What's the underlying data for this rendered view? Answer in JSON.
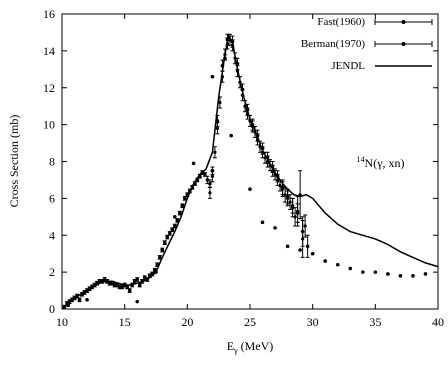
{
  "chart_data": {
    "type": "scatter",
    "title": "",
    "xlabel": "Eγ (MeV)",
    "xlabel_base": "E",
    "xlabel_sub": "γ",
    "xlabel_unit": "(MeV)",
    "ylabel": "Cross Section (mb)",
    "xlim": [
      10,
      40
    ],
    "ylim": [
      0,
      16
    ],
    "x_ticks": [
      10,
      15,
      20,
      25,
      30,
      35,
      40
    ],
    "y_ticks": [
      0,
      2,
      4,
      6,
      8,
      10,
      12,
      14,
      16
    ],
    "grid": false,
    "legend_position": "top-right",
    "annotation": {
      "sup": "14",
      "text": "N(γ, xn)",
      "x": 33.5,
      "y": 7.7
    },
    "series": [
      {
        "name": "Fast(1960)",
        "style": "points-errorbars",
        "color": "#000000",
        "points": [
          [
            21.8,
            6.3,
            0.3
          ],
          [
            22.0,
            7.2,
            0.3
          ],
          [
            22.2,
            8.5,
            0.3
          ],
          [
            22.4,
            9.8,
            0.3
          ],
          [
            22.6,
            11.2,
            0.3
          ],
          [
            22.8,
            12.6,
            0.3
          ],
          [
            23.0,
            13.8,
            0.3
          ],
          [
            23.2,
            14.4,
            0.3
          ],
          [
            23.4,
            14.6,
            0.3
          ],
          [
            23.6,
            14.3,
            0.3
          ],
          [
            23.8,
            13.6,
            0.3
          ],
          [
            24.0,
            12.9,
            0.3
          ],
          [
            24.2,
            12.3,
            0.3
          ],
          [
            24.4,
            11.6,
            0.3
          ],
          [
            24.6,
            11.0,
            0.3
          ],
          [
            24.8,
            10.6,
            0.3
          ],
          [
            25.0,
            10.2,
            0.3
          ],
          [
            25.2,
            9.9,
            0.3
          ],
          [
            25.4,
            9.6,
            0.3
          ],
          [
            25.6,
            9.2,
            0.3
          ],
          [
            25.8,
            8.8,
            0.3
          ],
          [
            26.0,
            8.5,
            0.3
          ],
          [
            26.2,
            8.2,
            0.3
          ],
          [
            26.4,
            8.0,
            0.3
          ],
          [
            26.6,
            7.8,
            0.3
          ],
          [
            26.8,
            7.5,
            0.3
          ],
          [
            27.0,
            7.3,
            0.3
          ],
          [
            27.2,
            7.0,
            0.3
          ],
          [
            27.4,
            6.7,
            0.3
          ],
          [
            27.6,
            6.5,
            0.4
          ],
          [
            27.8,
            6.2,
            0.4
          ],
          [
            28.0,
            6.0,
            0.4
          ],
          [
            28.2,
            5.8,
            0.4
          ],
          [
            28.4,
            5.5,
            0.5
          ],
          [
            28.6,
            5.0,
            0.5
          ],
          [
            28.8,
            5.3,
            0.8
          ],
          [
            29.0,
            6.2,
            1.3
          ],
          [
            29.2,
            3.8,
            1.0
          ],
          [
            29.4,
            4.5,
            0.6
          ]
        ]
      },
      {
        "name": "Berman(1970)",
        "style": "points-errorbars",
        "color": "#000000",
        "points": [
          [
            10.2,
            0.1,
            0.1
          ],
          [
            10.4,
            0.3,
            0.1
          ],
          [
            10.6,
            0.4,
            0.1
          ],
          [
            10.8,
            0.5,
            0.1
          ],
          [
            11.0,
            0.6,
            0.1
          ],
          [
            11.2,
            0.7,
            0.1
          ],
          [
            11.4,
            0.5,
            0.1
          ],
          [
            11.6,
            0.8,
            0.1
          ],
          [
            11.8,
            0.9,
            0.1
          ],
          [
            12.0,
            1.0,
            0.1
          ],
          [
            12.2,
            1.1,
            0.1
          ],
          [
            12.4,
            1.2,
            0.1
          ],
          [
            12.6,
            1.3,
            0.1
          ],
          [
            12.8,
            1.4,
            0.1
          ],
          [
            13.0,
            1.5,
            0.1
          ],
          [
            13.2,
            1.5,
            0.1
          ],
          [
            13.4,
            1.6,
            0.1
          ],
          [
            13.6,
            1.5,
            0.1
          ],
          [
            13.8,
            1.4,
            0.1
          ],
          [
            14.0,
            1.4,
            0.1
          ],
          [
            14.2,
            1.3,
            0.1
          ],
          [
            14.4,
            1.3,
            0.1
          ],
          [
            14.6,
            1.2,
            0.1
          ],
          [
            14.8,
            1.2,
            0.1
          ],
          [
            15.0,
            1.3,
            0.1
          ],
          [
            15.2,
            1.2,
            0.1
          ],
          [
            15.4,
            1.0,
            0.1
          ],
          [
            15.6,
            1.3,
            0.1
          ],
          [
            15.8,
            1.5,
            0.1
          ],
          [
            16.0,
            1.6,
            0.1
          ],
          [
            16.2,
            1.3,
            0.1
          ],
          [
            16.4,
            1.5,
            0.1
          ],
          [
            16.6,
            1.7,
            0.1
          ],
          [
            16.8,
            1.6,
            0.1
          ],
          [
            17.0,
            1.8,
            0.1
          ],
          [
            17.2,
            1.9,
            0.1
          ],
          [
            17.4,
            2.1,
            0.1
          ],
          [
            17.6,
            2.4,
            0.1
          ],
          [
            17.8,
            2.8,
            0.1
          ],
          [
            18.0,
            3.2,
            0.1
          ],
          [
            18.2,
            3.6,
            0.1
          ],
          [
            18.4,
            3.9,
            0.1
          ],
          [
            18.6,
            4.1,
            0.1
          ],
          [
            18.8,
            4.3,
            0.1
          ],
          [
            19.0,
            4.5,
            0.1
          ],
          [
            19.2,
            4.8,
            0.1
          ],
          [
            19.4,
            5.2,
            0.1
          ],
          [
            19.6,
            5.6,
            0.1
          ],
          [
            19.8,
            6.0,
            0.1
          ],
          [
            20.0,
            6.2,
            0.1
          ],
          [
            20.2,
            6.4,
            0.1
          ],
          [
            20.4,
            6.6,
            0.1
          ],
          [
            20.6,
            6.8,
            0.1
          ],
          [
            20.8,
            7.0,
            0.1
          ],
          [
            21.0,
            7.2,
            0.1
          ],
          [
            21.2,
            7.4,
            0.1
          ],
          [
            21.4,
            7.3,
            0.1
          ],
          [
            21.6,
            7.0,
            0.2
          ],
          [
            21.8,
            6.8,
            0.2
          ],
          [
            22.0,
            7.5,
            0.2
          ],
          [
            22.4,
            10.2,
            0.3
          ],
          [
            22.8,
            13.2,
            0.3
          ],
          [
            23.2,
            14.6,
            0.3
          ],
          [
            23.6,
            14.5,
            0.3
          ],
          [
            24.0,
            13.3,
            0.3
          ],
          [
            24.4,
            11.9,
            0.3
          ],
          [
            24.8,
            10.8,
            0.3
          ],
          [
            25.2,
            10.0,
            0.3
          ],
          [
            25.6,
            9.4,
            0.3
          ],
          [
            26.0,
            8.7,
            0.3
          ],
          [
            26.4,
            8.2,
            0.3
          ],
          [
            26.8,
            7.7,
            0.3
          ],
          [
            27.2,
            7.2,
            0.3
          ],
          [
            27.6,
            6.6,
            0.4
          ],
          [
            28.0,
            6.1,
            0.4
          ],
          [
            28.4,
            5.6,
            0.4
          ],
          [
            28.8,
            5.2,
            0.5
          ],
          [
            29.2,
            4.2,
            0.8
          ],
          [
            29.6,
            3.4,
            0.6
          ]
        ]
      },
      {
        "name": "JENDL",
        "style": "line",
        "color": "#000000",
        "points": [
          [
            10.0,
            0.0
          ],
          [
            10.5,
            0.3
          ],
          [
            11.0,
            0.6
          ],
          [
            11.5,
            0.8
          ],
          [
            12.0,
            1.0
          ],
          [
            12.5,
            1.2
          ],
          [
            13.0,
            1.4
          ],
          [
            13.5,
            1.5
          ],
          [
            14.0,
            1.5
          ],
          [
            14.5,
            1.4
          ],
          [
            15.0,
            1.3
          ],
          [
            15.5,
            1.3
          ],
          [
            16.0,
            1.4
          ],
          [
            16.5,
            1.5
          ],
          [
            17.0,
            1.7
          ],
          [
            17.5,
            2.0
          ],
          [
            18.0,
            2.8
          ],
          [
            18.5,
            3.5
          ],
          [
            19.0,
            4.2
          ],
          [
            19.5,
            5.0
          ],
          [
            20.0,
            6.0
          ],
          [
            20.5,
            6.8
          ],
          [
            21.0,
            7.3
          ],
          [
            21.5,
            7.6
          ],
          [
            22.0,
            8.5
          ],
          [
            22.5,
            11.5
          ],
          [
            23.0,
            13.8
          ],
          [
            23.3,
            14.8
          ],
          [
            23.6,
            14.5
          ],
          [
            24.0,
            13.0
          ],
          [
            24.5,
            11.5
          ],
          [
            25.0,
            10.3
          ],
          [
            25.5,
            9.5
          ],
          [
            26.0,
            8.6
          ],
          [
            26.5,
            8.0
          ],
          [
            27.0,
            7.4
          ],
          [
            27.5,
            6.9
          ],
          [
            28.0,
            6.5
          ],
          [
            28.5,
            6.2
          ],
          [
            29.0,
            6.1
          ],
          [
            29.5,
            6.2
          ],
          [
            30.0,
            6.0
          ],
          [
            31.0,
            5.2
          ],
          [
            32.0,
            4.6
          ],
          [
            33.0,
            4.2
          ],
          [
            34.0,
            4.0
          ],
          [
            35.0,
            3.8
          ],
          [
            36.0,
            3.5
          ],
          [
            37.0,
            3.1
          ],
          [
            38.0,
            2.8
          ],
          [
            39.0,
            2.5
          ],
          [
            40.0,
            2.3
          ]
        ]
      },
      {
        "name": "",
        "style": "points",
        "color": "#000000",
        "points": [
          [
            10.5,
            0.2
          ],
          [
            12.0,
            0.5
          ],
          [
            16.0,
            0.4
          ],
          [
            17.5,
            2.0
          ],
          [
            19.0,
            5.0
          ],
          [
            20.0,
            6.2
          ],
          [
            20.5,
            7.9
          ],
          [
            22.0,
            12.6
          ],
          [
            23.0,
            13.6
          ],
          [
            23.5,
            9.4
          ],
          [
            25.0,
            6.5
          ],
          [
            26.0,
            4.7
          ],
          [
            27.0,
            4.4
          ],
          [
            28.0,
            3.4
          ],
          [
            29.0,
            3.2
          ],
          [
            30.0,
            3.0
          ],
          [
            31.0,
            2.6
          ],
          [
            32.0,
            2.4
          ],
          [
            33.0,
            2.2
          ],
          [
            34.0,
            2.0
          ],
          [
            35.0,
            2.0
          ],
          [
            36.0,
            1.9
          ],
          [
            37.0,
            1.8
          ],
          [
            38.0,
            1.8
          ],
          [
            39.0,
            1.9
          ]
        ]
      }
    ]
  }
}
